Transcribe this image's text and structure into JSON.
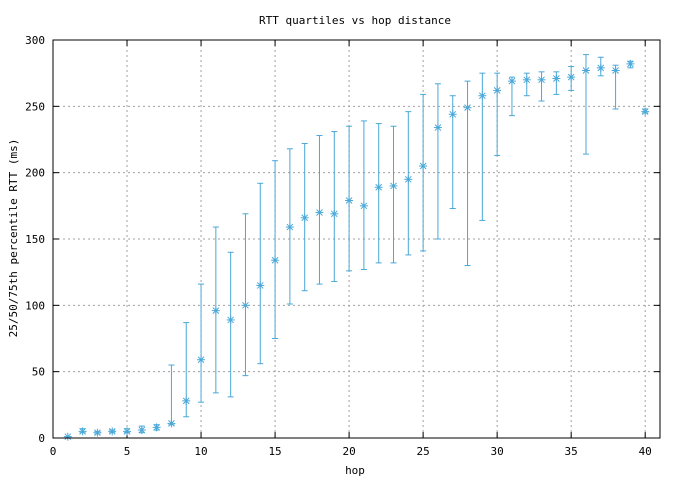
{
  "chart_data": {
    "type": "scatter",
    "title": "RTT quartiles vs hop distance",
    "xlabel": "hop",
    "ylabel": "25/50/75th percentile RTT (ms)",
    "xlim": [
      0,
      41
    ],
    "ylim": [
      0,
      300
    ],
    "xticks": [
      0,
      5,
      10,
      15,
      20,
      25,
      30,
      35,
      40
    ],
    "yticks": [
      0,
      50,
      100,
      150,
      200,
      250,
      300
    ],
    "grid": true,
    "legend": "none",
    "color": "#4aa8d8",
    "marker": "asterisk",
    "series": [
      {
        "hop": [
          1,
          2,
          3,
          4,
          5,
          6,
          7,
          8,
          9,
          10,
          11,
          12,
          13,
          14,
          15,
          16,
          17,
          18,
          19,
          20,
          21,
          22,
          23,
          24,
          25,
          26,
          27,
          28,
          29,
          30,
          31,
          32,
          33,
          34,
          35,
          36,
          37,
          38,
          39,
          40
        ],
        "median": [
          1,
          5,
          4,
          5,
          5,
          6,
          8,
          11,
          28,
          59,
          96,
          89,
          100,
          115,
          134,
          159,
          166,
          170,
          169,
          179,
          175,
          189,
          190,
          195,
          205,
          234,
          244,
          249,
          258,
          262,
          269,
          270,
          270,
          271,
          272,
          277,
          279,
          277,
          282,
          246
        ],
        "p25": [
          0,
          4,
          3,
          4,
          4,
          4,
          6,
          10,
          16,
          27,
          34,
          31,
          47,
          56,
          75,
          101,
          111,
          116,
          118,
          126,
          127,
          132,
          132,
          138,
          141,
          150,
          173,
          130,
          164,
          213,
          243,
          258,
          254,
          259,
          262,
          214,
          273,
          248,
          279,
          245
        ],
        "p75": [
          1,
          7,
          5,
          6,
          7,
          9,
          10,
          55,
          87,
          116,
          159,
          140,
          169,
          192,
          209,
          218,
          222,
          228,
          231,
          235,
          239,
          237,
          235,
          246,
          259,
          267,
          258,
          269,
          275,
          275,
          272,
          275,
          276,
          276,
          280,
          289,
          287,
          281,
          284,
          248
        ]
      }
    ]
  }
}
